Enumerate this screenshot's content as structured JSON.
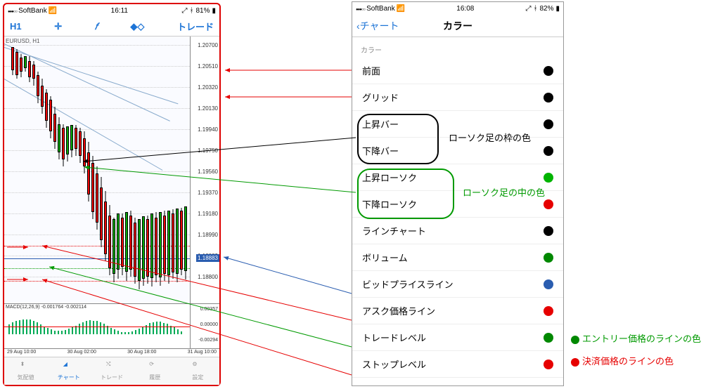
{
  "left": {
    "status": {
      "carrier": "SoftBank",
      "time": "16:11",
      "battery": "81%"
    },
    "toolbar": {
      "tf": "H1",
      "trade": "トレード"
    },
    "symbol": "EURUSD, H1",
    "yticks": [
      "1.20700",
      "1.20510",
      "1.20320",
      "1.20130",
      "1.19940",
      "1.19750",
      "1.19560",
      "1.19370",
      "1.19180",
      "1.18990",
      "1.18883",
      "1.18800"
    ],
    "price_label": "1.18883",
    "xticks": [
      "29 Aug 10:00",
      "30 Aug 02:00",
      "30 Aug 18:00",
      "31 Aug 10:00"
    ],
    "macd_label": "MACD(12,26,9) -0.001764 -0.002114",
    "macd_y": [
      "0.00357",
      "0.00000",
      "-0.00294"
    ],
    "tabs": [
      "気配値",
      "チャート",
      "トレード",
      "履歴",
      "設定"
    ]
  },
  "right": {
    "status": {
      "carrier": "SoftBank",
      "time": "16:08",
      "battery": "82%"
    },
    "back": "チャート",
    "title": "カラー",
    "section": "カラー",
    "rows": [
      {
        "label": "前面",
        "color": "#000000"
      },
      {
        "label": "グリッド",
        "color": "#000000"
      },
      {
        "label": "上昇バー",
        "color": "#000000"
      },
      {
        "label": "下降バー",
        "color": "#000000"
      },
      {
        "label": "上昇ローソク",
        "color": "#00b400"
      },
      {
        "label": "下降ローソク",
        "color": "#e60000"
      },
      {
        "label": "ラインチャート",
        "color": "#000000"
      },
      {
        "label": "ボリューム",
        "color": "#008800"
      },
      {
        "label": "ビッドプライスライン",
        "color": "#2a5db0"
      },
      {
        "label": "アスク価格ライン",
        "color": "#e60000"
      },
      {
        "label": "トレードレベル",
        "color": "#008800"
      },
      {
        "label": "ストップレベル",
        "color": "#e60000"
      }
    ]
  },
  "annotations": {
    "frame": "ローソク足の枠の色",
    "body": "ローソク足の中の色",
    "entry": "エントリー価格のラインの色",
    "settle": "決済価格のラインの色"
  },
  "colors": {
    "red": "#e60000",
    "green": "#009a00",
    "blue": "#2a5db0",
    "black": "#000000"
  }
}
